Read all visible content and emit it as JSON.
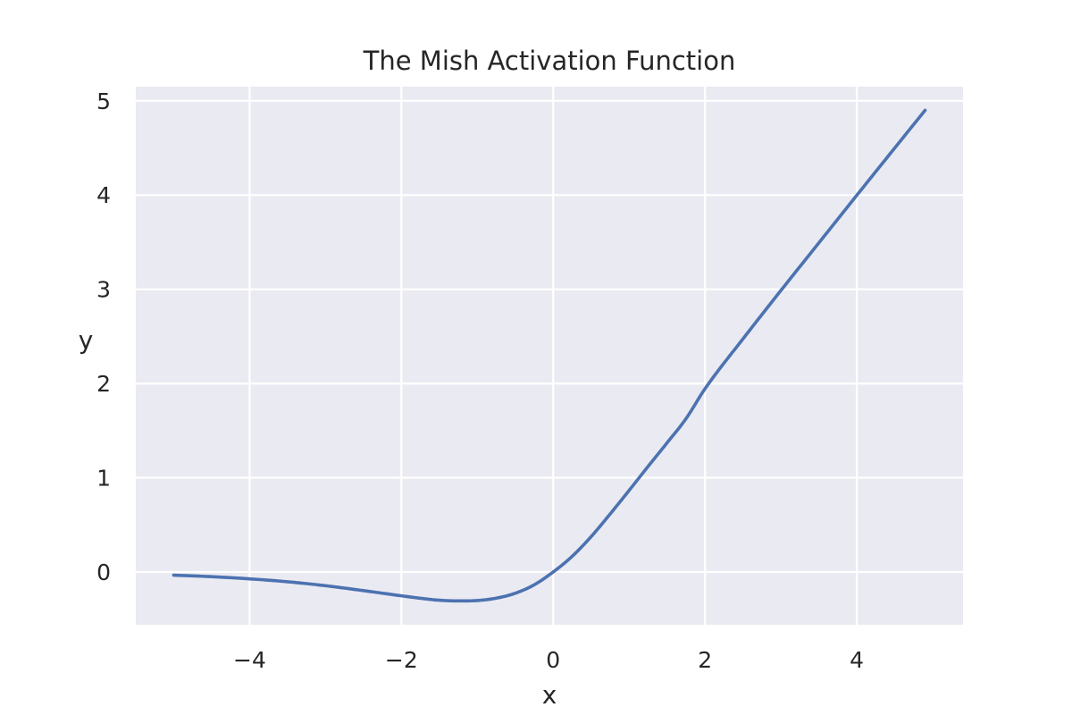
{
  "chart_data": {
    "type": "line",
    "title": "The Mish Activation Function",
    "xlabel": "x",
    "ylabel": "y",
    "xlim": [
      -5.5,
      5.4
    ],
    "ylim": [
      -0.56,
      5.15
    ],
    "xticks": [
      -4,
      -2,
      0,
      2,
      4
    ],
    "xtick_labels": [
      "−4",
      "−2",
      "0",
      "2",
      "4"
    ],
    "yticks": [
      0,
      1,
      2,
      3,
      4,
      5
    ],
    "ytick_labels": [
      "0",
      "1",
      "2",
      "3",
      "4",
      "5"
    ],
    "grid": true,
    "legend": "none",
    "colors": {
      "background": "#eaeaf2",
      "grid": "#ffffff",
      "series": "#4c72b0",
      "text": "#262626"
    },
    "series": [
      {
        "x": [
          -5.0,
          -4.5,
          -4.0,
          -3.5,
          -3.0,
          -2.5,
          -2.0,
          -1.75,
          -1.5,
          -1.25,
          -1.0,
          -0.75,
          -0.5,
          -0.25,
          0.0,
          0.25,
          0.5,
          0.75,
          1.0,
          1.25,
          1.5,
          1.75,
          2.0,
          2.5,
          3.0,
          3.5,
          4.0,
          4.5,
          4.9
        ],
        "y": [
          -0.034,
          -0.05,
          -0.073,
          -0.104,
          -0.146,
          -0.198,
          -0.253,
          -0.279,
          -0.3,
          -0.307,
          -0.303,
          -0.278,
          -0.226,
          -0.136,
          0.0,
          0.166,
          0.375,
          0.615,
          0.865,
          1.12,
          1.37,
          1.627,
          1.944,
          2.473,
          2.987,
          3.492,
          3.997,
          4.499,
          4.899
        ]
      }
    ]
  }
}
